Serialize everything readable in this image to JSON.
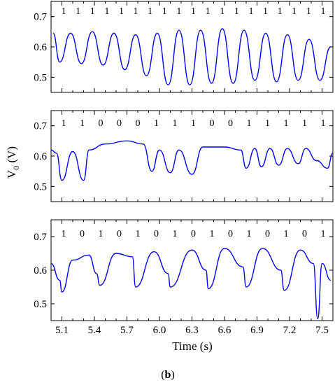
{
  "caption_letter": "b",
  "colors": {
    "trace": "#0000ff",
    "axes": "#000000"
  },
  "chart_data": [
    {
      "type": "line",
      "panel": "top",
      "bits": [
        "1",
        "1",
        "1",
        "1",
        "1",
        "1",
        "1",
        "1",
        "1",
        "1",
        "1",
        "1",
        "1",
        "1",
        "1",
        "1",
        "1",
        "1",
        "1"
      ],
      "x": [
        5.02,
        5.08,
        5.18,
        5.28,
        5.38,
        5.48,
        5.58,
        5.68,
        5.78,
        5.88,
        5.98,
        6.08,
        6.18,
        6.28,
        6.38,
        6.48,
        6.58,
        6.68,
        6.78,
        6.88,
        6.98,
        7.08,
        7.18,
        7.28,
        7.38,
        7.48,
        7.58
      ],
      "y": [
        0.645,
        0.55,
        0.645,
        0.545,
        0.65,
        0.54,
        0.645,
        0.525,
        0.64,
        0.505,
        0.645,
        0.475,
        0.655,
        0.475,
        0.655,
        0.48,
        0.66,
        0.48,
        0.655,
        0.49,
        0.645,
        0.485,
        0.64,
        0.49,
        0.625,
        0.49,
        0.6
      ],
      "yticks": [
        0.5,
        0.6,
        0.7
      ],
      "ylim": [
        0.45,
        0.75
      ],
      "xlim": [
        5.0,
        7.6
      ]
    },
    {
      "type": "line",
      "panel": "middle",
      "bits": [
        "1",
        "1",
        "0",
        "0",
        "0",
        "1",
        "1",
        "1",
        "0",
        "0",
        "1",
        "1",
        "1",
        "1",
        "1"
      ],
      "x": [
        5.0,
        5.05,
        5.1,
        5.2,
        5.3,
        5.35,
        5.5,
        5.7,
        5.85,
        5.93,
        6.0,
        6.1,
        6.18,
        6.3,
        6.4,
        6.6,
        6.75,
        6.8,
        6.88,
        6.94,
        7.02,
        7.1,
        7.18,
        7.28,
        7.35,
        7.45,
        7.55,
        7.6
      ],
      "y": [
        0.62,
        0.61,
        0.52,
        0.615,
        0.52,
        0.62,
        0.64,
        0.65,
        0.64,
        0.55,
        0.62,
        0.545,
        0.62,
        0.54,
        0.63,
        0.63,
        0.62,
        0.56,
        0.625,
        0.565,
        0.625,
        0.57,
        0.625,
        0.575,
        0.625,
        0.585,
        0.56,
        0.61
      ],
      "yticks": [
        0.5,
        0.6,
        0.7
      ],
      "ylim": [
        0.45,
        0.75
      ],
      "xlim": [
        5.0,
        7.6
      ]
    },
    {
      "type": "line",
      "panel": "bottom",
      "bits": [
        "1",
        "0",
        "1",
        "0",
        "1",
        "0",
        "1",
        "0",
        "1",
        "0",
        "1",
        "0",
        "1",
        "0",
        "1"
      ],
      "x": [
        5.0,
        5.08,
        5.1,
        5.2,
        5.35,
        5.42,
        5.45,
        5.6,
        5.75,
        5.78,
        5.95,
        6.08,
        6.1,
        6.3,
        6.43,
        6.45,
        6.6,
        6.77,
        6.8,
        6.95,
        7.12,
        7.15,
        7.3,
        7.42,
        7.46,
        7.5,
        7.58
      ],
      "y": [
        0.62,
        0.57,
        0.535,
        0.63,
        0.645,
        0.59,
        0.555,
        0.65,
        0.64,
        0.55,
        0.655,
        0.59,
        0.55,
        0.66,
        0.6,
        0.545,
        0.665,
        0.61,
        0.55,
        0.665,
        0.6,
        0.54,
        0.66,
        0.62,
        0.455,
        0.62,
        0.57
      ],
      "yticks": [
        0.5,
        0.6,
        0.7
      ],
      "ylim": [
        0.45,
        0.75
      ],
      "xlim": [
        5.0,
        7.6
      ],
      "xticks": [
        "5.1",
        "5.4",
        "5.7",
        "6.0",
        "6.3",
        "6.6",
        "6.9",
        "7.2",
        "7.5"
      ],
      "xlabel": "Time (s)"
    }
  ],
  "ylabel_main": "V",
  "ylabel_sub": "0",
  "ylabel_unit": " (V)"
}
